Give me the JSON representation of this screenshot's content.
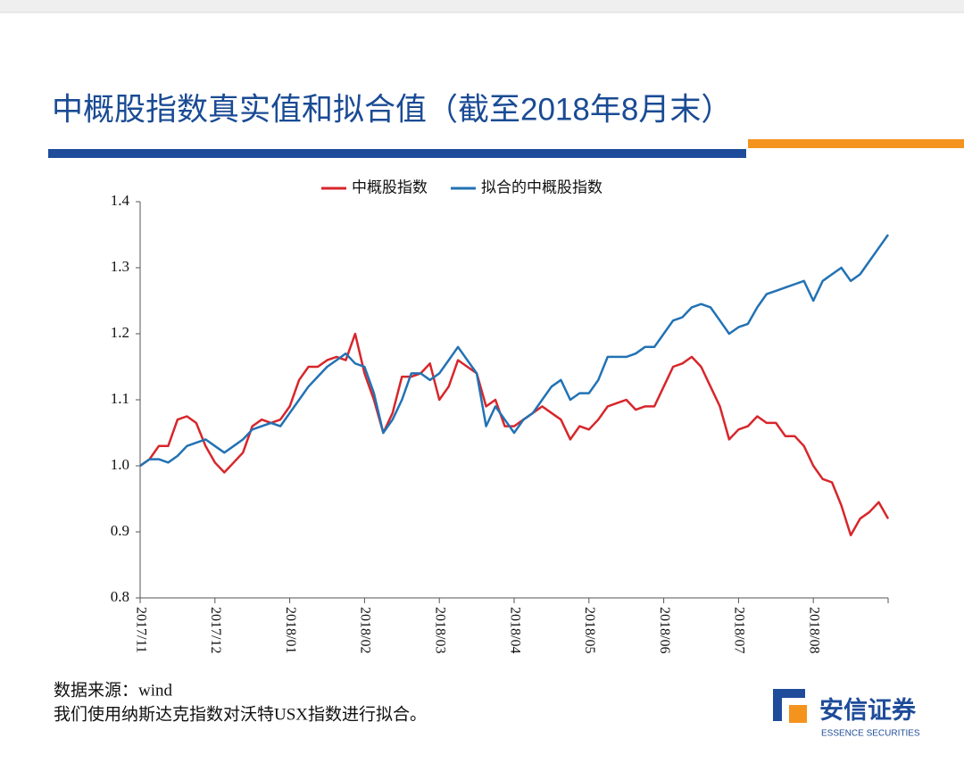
{
  "chart_data": {
    "type": "line",
    "title": "中概股指数真实值和拟合值（截至2018年8月末）",
    "categories": [
      "2017/11",
      null,
      null,
      null,
      null,
      null,
      null,
      null,
      "2017/12",
      null,
      null,
      null,
      null,
      null,
      null,
      null,
      "2018/01",
      null,
      null,
      null,
      null,
      null,
      null,
      null,
      "2018/02",
      null,
      null,
      null,
      null,
      null,
      null,
      null,
      "2018/03",
      null,
      null,
      null,
      null,
      null,
      null,
      null,
      "2018/04",
      null,
      null,
      null,
      null,
      null,
      null,
      null,
      "2018/05",
      null,
      null,
      null,
      null,
      null,
      null,
      null,
      "2018/06",
      null,
      null,
      null,
      null,
      null,
      null,
      null,
      "2018/07",
      null,
      null,
      null,
      null,
      null,
      null,
      null,
      "2018/08",
      null,
      null,
      null,
      null,
      null,
      null,
      null,
      null
    ],
    "series": [
      {
        "name": "中概股指数",
        "color": "#d7262b",
        "values": [
          1.0,
          1.01,
          1.03,
          1.03,
          1.07,
          1.075,
          1.065,
          1.03,
          1.005,
          0.99,
          1.005,
          1.02,
          1.06,
          1.07,
          1.065,
          1.07,
          1.09,
          1.13,
          1.15,
          1.15,
          1.16,
          1.165,
          1.16,
          1.2,
          1.14,
          1.1,
          1.05,
          1.08,
          1.135,
          1.135,
          1.14,
          1.155,
          1.1,
          1.12,
          1.16,
          1.15,
          1.14,
          1.09,
          1.1,
          1.06,
          1.06,
          1.07,
          1.08,
          1.09,
          1.08,
          1.07,
          1.04,
          1.06,
          1.055,
          1.07,
          1.09,
          1.095,
          1.1,
          1.085,
          1.09,
          1.09,
          1.12,
          1.15,
          1.155,
          1.165,
          1.15,
          1.12,
          1.09,
          1.04,
          1.055,
          1.06,
          1.075,
          1.065,
          1.065,
          1.045,
          1.045,
          1.03,
          1.0,
          0.98,
          0.975,
          0.94,
          0.895,
          0.92,
          0.93,
          0.945,
          0.92
        ]
      },
      {
        "name": "拟合的中概股指数",
        "color": "#2272b4",
        "values": [
          1.0,
          1.01,
          1.01,
          1.005,
          1.015,
          1.03,
          1.035,
          1.04,
          1.03,
          1.02,
          1.03,
          1.04,
          1.055,
          1.06,
          1.065,
          1.06,
          1.08,
          1.1,
          1.12,
          1.135,
          1.15,
          1.16,
          1.17,
          1.155,
          1.15,
          1.11,
          1.05,
          1.07,
          1.1,
          1.14,
          1.14,
          1.13,
          1.14,
          1.16,
          1.18,
          1.16,
          1.14,
          1.06,
          1.09,
          1.07,
          1.05,
          1.07,
          1.08,
          1.1,
          1.12,
          1.13,
          1.1,
          1.11,
          1.11,
          1.13,
          1.165,
          1.165,
          1.165,
          1.17,
          1.18,
          1.18,
          1.2,
          1.22,
          1.225,
          1.24,
          1.245,
          1.24,
          1.22,
          1.2,
          1.21,
          1.215,
          1.24,
          1.26,
          1.265,
          1.27,
          1.275,
          1.28,
          1.25,
          1.28,
          1.29,
          1.3,
          1.28,
          1.29,
          1.31,
          1.33,
          1.35
        ]
      }
    ],
    "ylim": [
      0.8,
      1.4
    ],
    "yticks": [
      0.8,
      0.9,
      {
        "value": 1,
        "label": "1.0"
      },
      1.1,
      1.2,
      1.3,
      1.4
    ],
    "grid": false,
    "legend": "top",
    "notes": [
      "数据来源：wind",
      "我们使用纳斯达克指数对沃特USX指数进行拟合。"
    ]
  },
  "brand": {
    "name": "安信证券",
    "tagline": "ESSENCE SECURITIES"
  }
}
